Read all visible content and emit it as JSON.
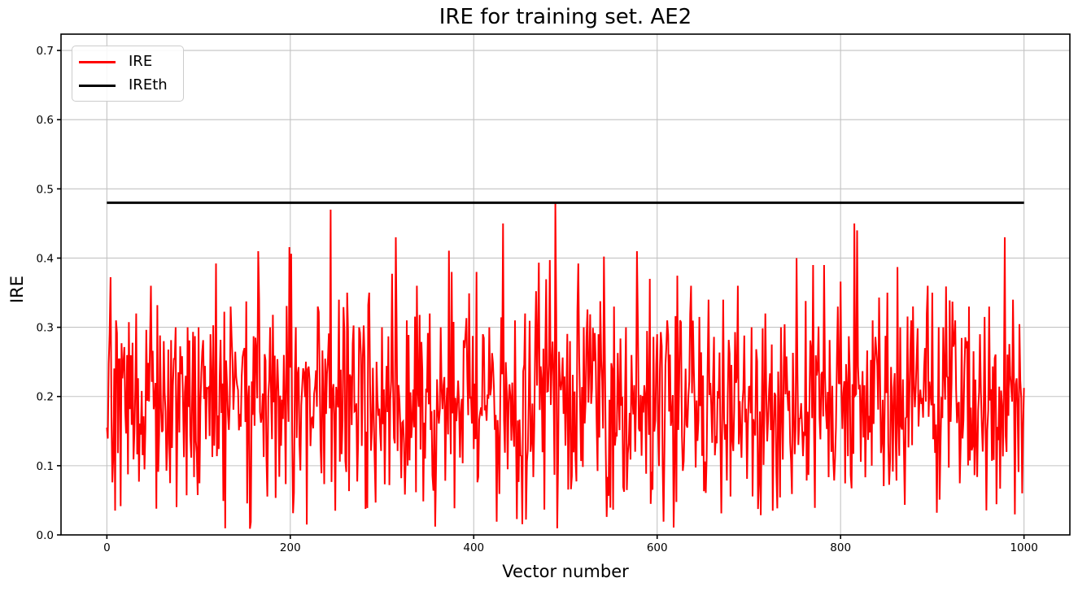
{
  "chart_data": {
    "type": "line",
    "title": "IRE for training set. AE2",
    "xlabel": "Vector number",
    "ylabel": "IRE",
    "xlim": [
      -50,
      1050
    ],
    "ylim": [
      0,
      0.7236
    ],
    "xticks": [
      0,
      200,
      400,
      600,
      800,
      1000
    ],
    "xtick_labels": [
      "0",
      "200",
      "400",
      "600",
      "800",
      "1000"
    ],
    "yticks": [
      0.0,
      0.1,
      0.2,
      0.3,
      0.4,
      0.5,
      0.6,
      0.7
    ],
    "ytick_labels": [
      "0.0",
      "0.1",
      "0.2",
      "0.3",
      "0.4",
      "0.5",
      "0.6",
      "0.7"
    ],
    "grid": true,
    "legend_position": "upper-left",
    "background": "#ffffff",
    "grid_color": "#c3c3c3",
    "series": [
      {
        "name": "IRE",
        "color": "#ff0000",
        "linewidth": 2,
        "type": "noisy-line",
        "x_start": 0,
        "x_end": 1000,
        "points": 1001,
        "typical_range": [
          0.01,
          0.36
        ],
        "mean_level": 0.19,
        "synthesis": {
          "seed": 42,
          "base_min": 0.02,
          "base_range": 0.34,
          "spike_prob": 0.02,
          "spike_min": 0.33,
          "spike_max": 0.42,
          "dip_prob": 0.025,
          "dip_min": 0.008,
          "dip_max": 0.05
        },
        "peaks": [
          [
            0,
            0.155
          ],
          [
            3,
            0.29
          ],
          [
            10,
            0.31
          ],
          [
            22,
            0.26
          ],
          [
            32,
            0.32
          ],
          [
            48,
            0.36
          ],
          [
            62,
            0.28
          ],
          [
            75,
            0.3
          ],
          [
            88,
            0.3
          ],
          [
            100,
            0.3
          ],
          [
            113,
            0.29
          ],
          [
            135,
            0.33
          ],
          [
            150,
            0.27
          ],
          [
            165,
            0.41
          ],
          [
            178,
            0.3
          ],
          [
            193,
            0.26
          ],
          [
            206,
            0.3
          ],
          [
            218,
            0.015
          ],
          [
            230,
            0.33
          ],
          [
            244,
            0.47
          ],
          [
            253,
            0.34
          ],
          [
            262,
            0.35
          ],
          [
            275,
            0.3
          ],
          [
            286,
            0.35
          ],
          [
            300,
            0.3
          ],
          [
            315,
            0.43
          ],
          [
            327,
            0.31
          ],
          [
            338,
            0.36
          ],
          [
            352,
            0.32
          ],
          [
            364,
            0.3
          ],
          [
            376,
            0.38
          ],
          [
            390,
            0.27
          ],
          [
            403,
            0.38
          ],
          [
            417,
            0.3
          ],
          [
            432,
            0.45
          ],
          [
            445,
            0.31
          ],
          [
            456,
            0.32
          ],
          [
            470,
            0.29
          ],
          [
            489,
            0.48
          ],
          [
            505,
            0.28
          ],
          [
            520,
            0.3
          ],
          [
            536,
            0.29
          ],
          [
            553,
            0.33
          ],
          [
            566,
            0.3
          ],
          [
            578,
            0.41
          ],
          [
            592,
            0.37
          ],
          [
            611,
            0.31
          ],
          [
            625,
            0.31
          ],
          [
            637,
            0.36
          ],
          [
            656,
            0.34
          ],
          [
            672,
            0.34
          ],
          [
            688,
            0.36
          ],
          [
            703,
            0.3
          ],
          [
            718,
            0.32
          ],
          [
            735,
            0.3
          ],
          [
            752,
            0.4
          ],
          [
            770,
            0.39
          ],
          [
            782,
            0.39
          ],
          [
            797,
            0.33
          ],
          [
            815,
            0.45
          ],
          [
            818,
            0.44
          ],
          [
            835,
            0.31
          ],
          [
            851,
            0.35
          ],
          [
            865,
            0.3
          ],
          [
            877,
            0.31
          ],
          [
            895,
            0.36
          ],
          [
            900,
            0.35
          ],
          [
            912,
            0.3
          ],
          [
            925,
            0.31
          ],
          [
            940,
            0.33
          ],
          [
            952,
            0.29
          ],
          [
            962,
            0.33
          ],
          [
            979,
            0.43
          ],
          [
            988,
            0.34
          ],
          [
            998,
            0.06
          ]
        ]
      },
      {
        "name": "IREth",
        "color": "#000000",
        "linewidth": 3,
        "type": "hline",
        "value": 0.48,
        "x_start": 0,
        "x_end": 1000
      }
    ]
  }
}
